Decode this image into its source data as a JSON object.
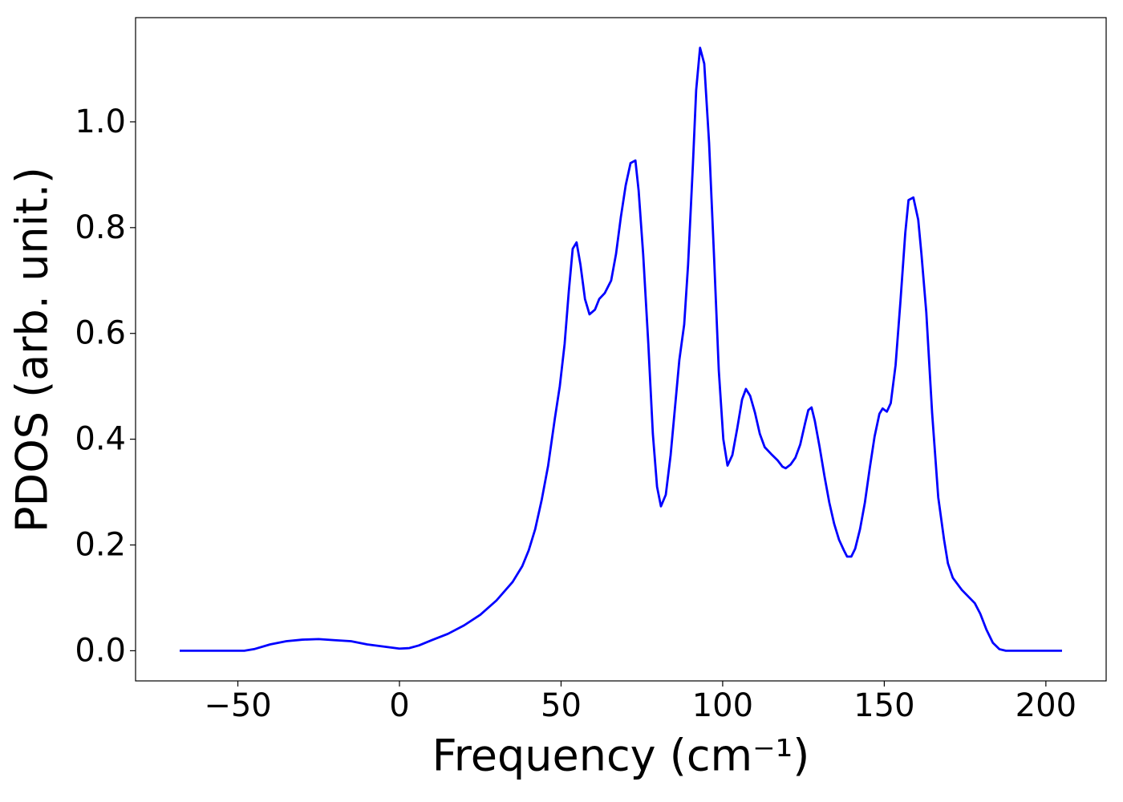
{
  "chart_data": {
    "type": "line",
    "xlabel": "Frequency (cm⁻¹)",
    "ylabel": "PDOS (arb. unit.)",
    "xlim": [
      -81.65,
      218.65
    ],
    "ylim": [
      -0.057,
      1.197
    ],
    "xticks": [
      {
        "value": -50,
        "label": "−50"
      },
      0,
      50,
      100,
      150,
      200
    ],
    "yticks": [
      {
        "value": 0,
        "label": "0.0"
      },
      {
        "value": 0.2,
        "label": "0.2"
      },
      {
        "value": 0.4,
        "label": "0.4"
      },
      {
        "value": 0.6,
        "label": "0.6"
      },
      {
        "value": 0.8,
        "label": "0.8"
      },
      {
        "value": 1.0,
        "label": "1.0"
      }
    ],
    "grid": false,
    "series": [
      {
        "name": "PDOS",
        "color": "#0000ff",
        "x": [
          -68,
          -48,
          -45,
          -40,
          -35,
          -30,
          -25,
          -20,
          -15,
          -10,
          -5,
          0,
          3,
          6,
          10,
          15,
          20,
          25,
          30,
          35,
          38,
          40,
          42,
          44,
          46,
          48.1,
          49.6,
          51.1,
          52.4,
          53.6,
          54.8,
          56,
          57.4,
          58.8,
          60.5,
          61.8,
          63.5,
          65.5,
          67,
          68.5,
          70,
          71.5,
          73,
          74,
          75.4,
          77,
          78.4,
          79.7,
          80.9,
          82.4,
          83.9,
          85.4,
          86.6,
          88.1,
          89.3,
          90.8,
          91.8,
          93,
          94.3,
          95.8,
          97.3,
          98.8,
          100.2,
          101.5,
          103,
          104.5,
          106,
          107.2,
          108.5,
          110,
          111.5,
          113,
          115,
          117,
          118.5,
          119.5,
          121,
          122.5,
          124,
          125.5,
          126.5,
          127.5,
          128.5,
          130,
          131.5,
          133,
          134.5,
          136,
          137.5,
          138.5,
          139.8,
          141,
          142.5,
          144,
          145.5,
          147,
          148.5,
          149.5,
          150.8,
          152,
          153.5,
          155,
          156.5,
          157.5,
          159,
          160.5,
          161.5,
          163,
          164.8,
          166.7,
          168.5,
          169.7,
          171.2,
          174,
          178,
          179.7,
          181.6,
          183.6,
          185.6,
          187.6,
          205
        ],
        "values": [
          0,
          0,
          0.003,
          0.012,
          0.018,
          0.021,
          0.022,
          0.02,
          0.018,
          0.012,
          0.008,
          0.004,
          0.005,
          0.01,
          0.02,
          0.032,
          0.048,
          0.068,
          0.095,
          0.13,
          0.16,
          0.19,
          0.23,
          0.285,
          0.35,
          0.44,
          0.5,
          0.58,
          0.68,
          0.76,
          0.772,
          0.73,
          0.665,
          0.636,
          0.645,
          0.665,
          0.676,
          0.7,
          0.75,
          0.82,
          0.88,
          0.922,
          0.927,
          0.87,
          0.75,
          0.58,
          0.41,
          0.31,
          0.273,
          0.295,
          0.37,
          0.47,
          0.55,
          0.617,
          0.73,
          0.92,
          1.06,
          1.14,
          1.11,
          0.96,
          0.75,
          0.53,
          0.4,
          0.35,
          0.37,
          0.42,
          0.475,
          0.495,
          0.482,
          0.45,
          0.41,
          0.385,
          0.372,
          0.36,
          0.348,
          0.345,
          0.352,
          0.365,
          0.39,
          0.43,
          0.455,
          0.46,
          0.435,
          0.385,
          0.33,
          0.28,
          0.24,
          0.21,
          0.19,
          0.178,
          0.178,
          0.193,
          0.23,
          0.28,
          0.345,
          0.405,
          0.448,
          0.458,
          0.452,
          0.468,
          0.54,
          0.66,
          0.79,
          0.852,
          0.857,
          0.815,
          0.75,
          0.64,
          0.45,
          0.29,
          0.21,
          0.165,
          0.138,
          0.115,
          0.09,
          0.07,
          0.04,
          0.015,
          0.003,
          0,
          0
        ]
      }
    ]
  }
}
